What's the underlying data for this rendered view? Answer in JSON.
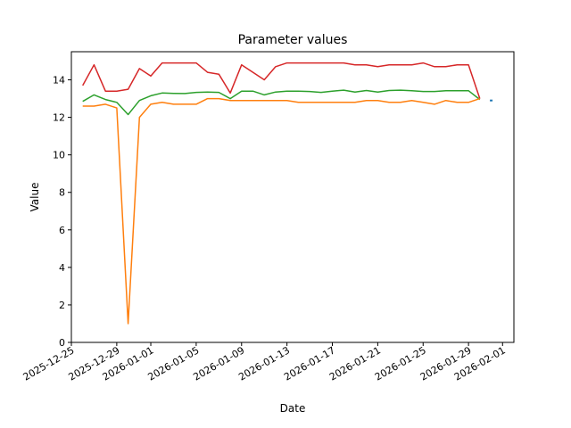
{
  "chart_data": {
    "type": "line",
    "title": "Parameter values",
    "xlabel": "Date",
    "ylabel": "Value",
    "xlim": [
      "2025-12-25",
      "2026-02-02"
    ],
    "ylim": [
      0,
      15.5
    ],
    "grid": false,
    "x_ticks": [
      "2025-12-25",
      "2025-12-29",
      "2026-01-01",
      "2026-01-05",
      "2026-01-09",
      "2026-01-13",
      "2026-01-17",
      "2026-01-21",
      "2026-01-25",
      "2026-01-29",
      "2026-02-01"
    ],
    "y_ticks": [
      0,
      2,
      4,
      6,
      8,
      10,
      12,
      14
    ],
    "x": [
      "2025-12-26",
      "2025-12-27",
      "2025-12-28",
      "2025-12-29",
      "2025-12-30",
      "2025-12-31",
      "2026-01-01",
      "2026-01-02",
      "2026-01-03",
      "2026-01-04",
      "2026-01-05",
      "2026-01-06",
      "2026-01-07",
      "2026-01-08",
      "2026-01-09",
      "2026-01-10",
      "2026-01-11",
      "2026-01-12",
      "2026-01-13",
      "2026-01-14",
      "2026-01-15",
      "2026-01-16",
      "2026-01-17",
      "2026-01-18",
      "2026-01-19",
      "2026-01-20",
      "2026-01-21",
      "2026-01-22",
      "2026-01-23",
      "2026-01-24",
      "2026-01-25",
      "2026-01-26",
      "2026-01-27",
      "2026-01-28",
      "2026-01-29",
      "2026-01-30"
    ],
    "series": [
      {
        "color": "#d62728",
        "values": [
          13.7,
          14.8,
          13.4,
          13.4,
          13.5,
          14.6,
          14.2,
          14.9,
          14.9,
          14.9,
          14.9,
          14.4,
          14.3,
          13.3,
          14.8,
          14.4,
          14.0,
          14.7,
          14.9,
          14.9,
          14.9,
          14.9,
          14.9,
          14.9,
          14.8,
          14.8,
          14.7,
          14.8,
          14.8,
          14.8,
          14.9,
          14.7,
          14.7,
          14.8,
          14.8,
          13.0
        ]
      },
      {
        "color": "#2ca02c",
        "values": [
          12.85,
          13.2,
          12.95,
          12.8,
          12.15,
          12.9,
          13.15,
          13.3,
          13.28,
          13.27,
          13.33,
          13.35,
          13.33,
          13.0,
          13.4,
          13.4,
          13.2,
          13.35,
          13.4,
          13.4,
          13.38,
          13.33,
          13.4,
          13.45,
          13.35,
          13.43,
          13.35,
          13.43,
          13.45,
          13.42,
          13.38,
          13.38,
          13.42,
          13.42,
          13.42,
          12.95
        ]
      },
      {
        "color": "#ff7f0e",
        "values": [
          12.6,
          12.6,
          12.7,
          12.5,
          1.0,
          12.0,
          12.7,
          12.8,
          12.7,
          12.7,
          12.7,
          13.0,
          13.0,
          12.9,
          12.9,
          12.9,
          12.9,
          12.9,
          12.9,
          12.8,
          12.8,
          12.8,
          12.8,
          12.8,
          12.8,
          12.9,
          12.9,
          12.8,
          12.8,
          12.9,
          12.8,
          12.7,
          12.9,
          12.8,
          12.8,
          13.0
        ]
      },
      {
        "color": "#1f77b4",
        "values": [
          null,
          null,
          null,
          null,
          null,
          null,
          null,
          null,
          null,
          null,
          null,
          null,
          null,
          null,
          null,
          null,
          null,
          null,
          null,
          null,
          null,
          null,
          null,
          null,
          null,
          null,
          null,
          null,
          null,
          null,
          null,
          null,
          null,
          null,
          null,
          null
        ],
        "extra_points": [
          {
            "x": "2026-01-31",
            "y": 12.9
          }
        ]
      }
    ]
  }
}
